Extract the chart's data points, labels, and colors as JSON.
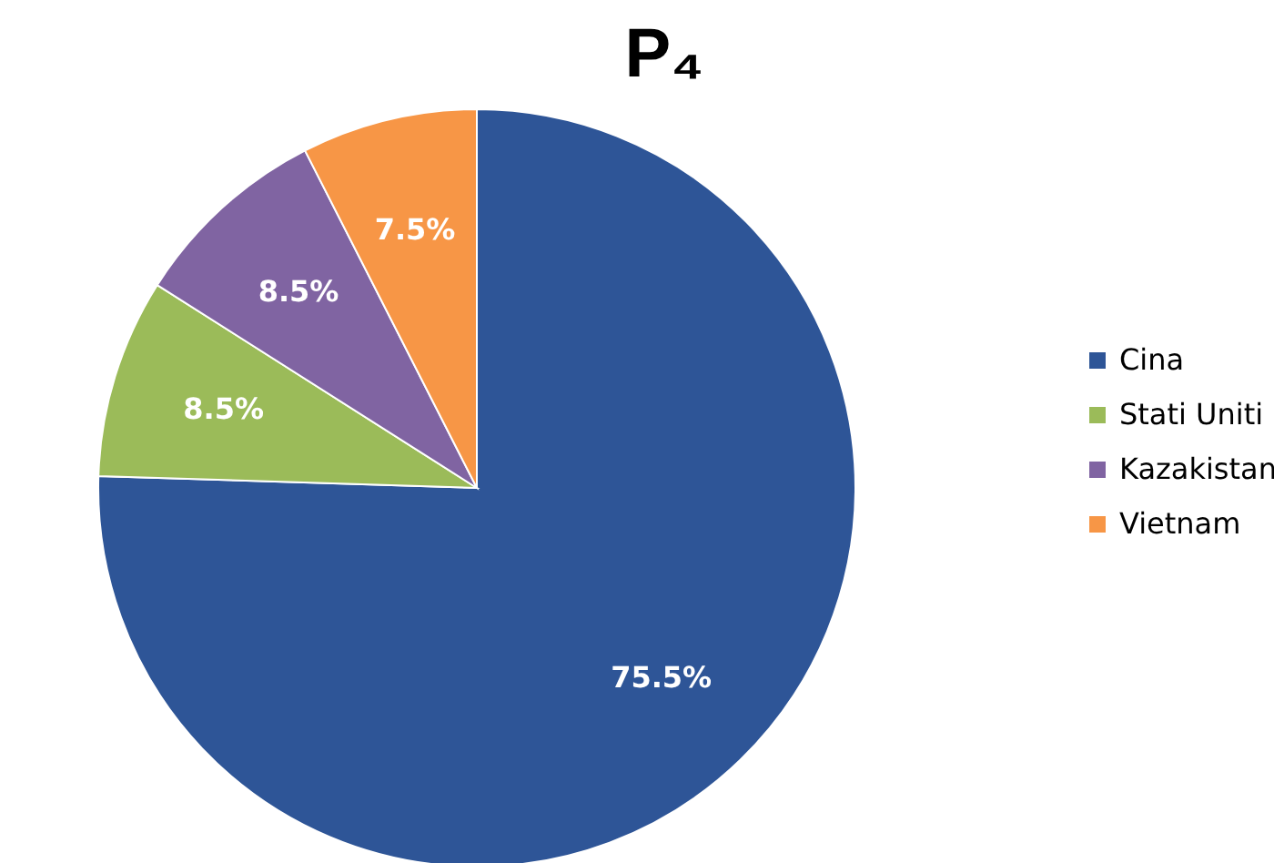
{
  "chart_data": {
    "type": "pie",
    "title": "P₄",
    "categories": [
      "Cina",
      "Stati Uniti",
      "Kazakistan",
      "Vietnam"
    ],
    "values": [
      75.5,
      8.5,
      8.5,
      7.5
    ],
    "colors": [
      "#2e5597",
      "#9bbb59",
      "#8064a2",
      "#f79646"
    ],
    "value_labels": [
      "75.5%",
      "8.5%",
      "8.5%",
      "7.5%"
    ],
    "legend": "right"
  }
}
